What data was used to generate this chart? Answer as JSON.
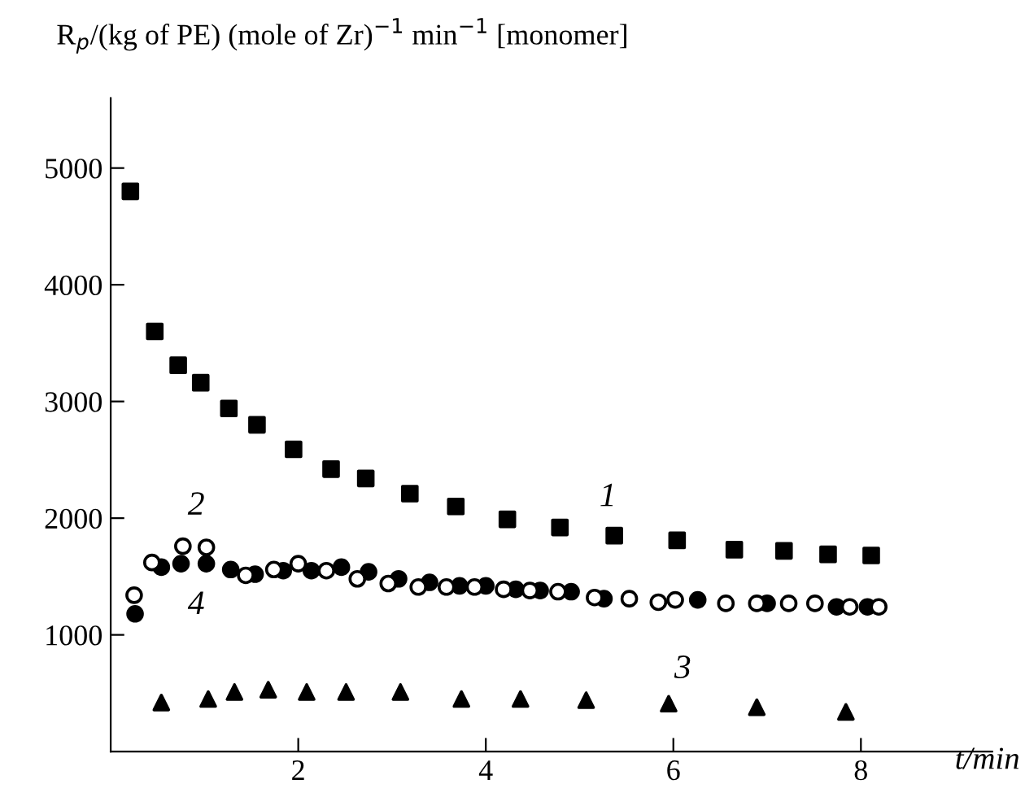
{
  "chart_data": {
    "type": "scatter",
    "ylabel": "R$_{p}$/(kg of PE) (mole of Zr)$^{−1}$ min$^{−1}$ [monomer]",
    "xlabel": "t/min",
    "xlim": [
      0,
      9.4
    ],
    "ylim": [
      0,
      5600
    ],
    "xticks": [
      2,
      4,
      6,
      8
    ],
    "yticks": [
      1000,
      2000,
      3000,
      4000,
      5000
    ],
    "grid": false,
    "legend": false,
    "series": [
      {
        "color": "#000000",
        "marker": "square",
        "x": [
          0.21,
          0.47,
          0.72,
          0.96,
          1.26,
          1.56,
          1.95,
          2.35,
          2.72,
          3.19,
          3.68,
          4.23,
          4.79,
          5.37,
          6.04,
          6.65,
          7.18,
          7.65,
          8.11
        ],
        "values": [
          4800,
          3600,
          3310,
          3160,
          2940,
          2800,
          2590,
          2420,
          2340,
          2210,
          2100,
          1990,
          1920,
          1850,
          1810,
          1730,
          1720,
          1690,
          1680
        ]
      },
      {
        "color": "#000000",
        "marker": "triangle",
        "x": [
          0.54,
          1.04,
          1.32,
          1.68,
          2.09,
          2.51,
          3.09,
          3.74,
          4.37,
          5.07,
          5.95,
          6.89,
          7.84
        ],
        "values": [
          420,
          450,
          510,
          530,
          510,
          510,
          510,
          450,
          450,
          440,
          410,
          380,
          340
        ]
      },
      {
        "color": "#000000",
        "marker": "circle",
        "x": [
          0.26,
          0.54,
          0.75,
          1.02,
          1.28,
          1.54,
          1.84,
          2.14,
          2.46,
          2.75,
          3.07,
          3.4,
          3.72,
          4.0,
          4.32,
          4.58,
          4.91,
          5.26,
          5.54,
          6.26,
          7.0,
          7.74,
          8.07
        ],
        "values": [
          1180,
          1580,
          1610,
          1610,
          1560,
          1520,
          1550,
          1550,
          1580,
          1540,
          1480,
          1450,
          1420,
          1420,
          1390,
          1380,
          1370,
          1310,
          null,
          1300,
          1270,
          1240,
          1240
        ]
      },
      {
        "color": "#ffffff",
        "marker": "circle",
        "x": [
          0.25,
          0.44,
          0.77,
          1.02,
          1.44,
          1.74,
          2.0,
          2.3,
          2.63,
          2.96,
          3.28,
          3.58,
          3.88,
          4.19,
          4.47,
          4.77,
          5.16,
          5.53,
          5.84,
          6.02,
          6.56,
          6.89,
          7.23,
          7.51,
          7.88,
          8.19
        ],
        "values": [
          1340,
          1620,
          1760,
          1750,
          1510,
          1560,
          1610,
          1550,
          1480,
          1440,
          1410,
          1410,
          1410,
          1390,
          1380,
          1370,
          1320,
          1310,
          1280,
          1300,
          1270,
          1270,
          1270,
          1270,
          1240,
          1240
        ]
      }
    ],
    "annotations": [
      "1",
      "2",
      "3",
      "4"
    ]
  }
}
